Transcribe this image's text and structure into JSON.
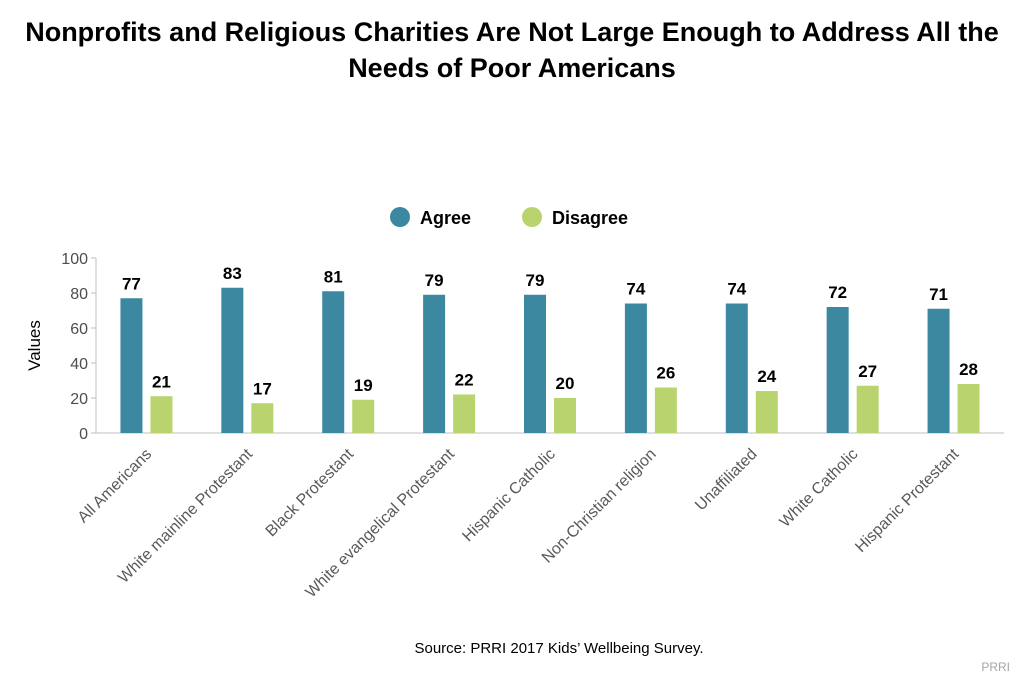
{
  "chart_title": "Nonprofits and Religious Charities Are Not Large Enough to Address All the Needs of Poor Americans",
  "source": "Source: PRRI 2017 Kids’ Wellbeing Survey.",
  "brand": "PRRI",
  "chart_data": {
    "type": "bar",
    "title": "Nonprofits and Religious Charities Are Not Large Enough to Address All the Needs of Poor Americans",
    "xlabel": "",
    "ylabel": "Values",
    "ylim": [
      0,
      100
    ],
    "yticks": [
      0,
      20,
      40,
      60,
      80,
      100
    ],
    "grid": false,
    "legend": "top-center",
    "categories": [
      "All Americans",
      "White mainline Protestant",
      "Black Protestant",
      "White evangelical Protestant",
      "Hispanic Catholic",
      "Non-Christian religion",
      "Unaffiliated",
      "White Catholic",
      "Hispanic Protestant"
    ],
    "series": [
      {
        "name": "Agree",
        "color": "#3b88a0",
        "values": [
          77,
          83,
          81,
          79,
          79,
          74,
          74,
          72,
          71
        ]
      },
      {
        "name": "Disagree",
        "color": "#b9d46f",
        "values": [
          21,
          17,
          19,
          22,
          20,
          26,
          24,
          27,
          28
        ]
      }
    ]
  }
}
